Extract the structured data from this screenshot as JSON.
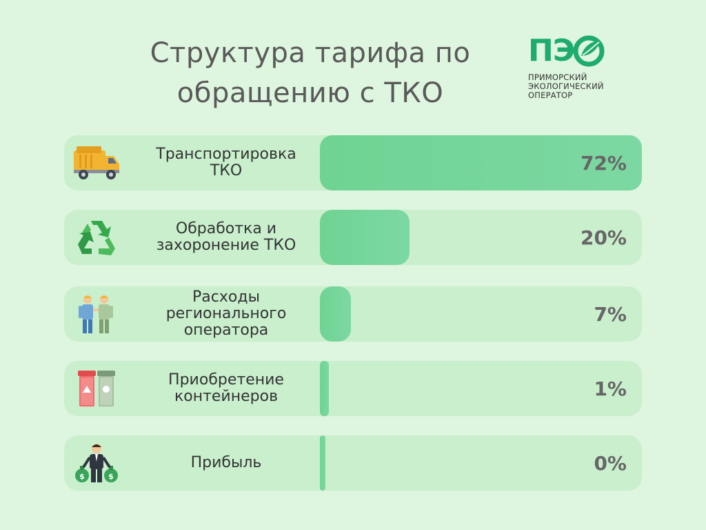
{
  "header": {
    "title_line1": "Структура тарифа по",
    "title_line2": "обращению с ТКО"
  },
  "logo": {
    "letters": "ПЭ",
    "line1": "ПРИМОРСКИЙ",
    "line2": "ЭКОЛОГИЧЕСКИЙ",
    "line3": "ОПЕРАТОР",
    "accent_color": "#1eab6e"
  },
  "chart_data": {
    "type": "bar",
    "orientation": "horizontal",
    "categories": [
      "Транспортировка\nТКО",
      "Обработка и\nзахоронение ТКО",
      "Расходы\nрегионального\nоператора",
      "Приобретение\nконтейнеров",
      "Прибыль"
    ],
    "values": [
      72,
      20,
      7,
      1,
      0
    ],
    "value_labels": [
      "72%",
      "20%",
      "7%",
      "1%",
      "0%"
    ],
    "icons": [
      "garbage-truck-icon",
      "recycle-icon",
      "workers-icon",
      "containers-icon",
      "businessman-icon"
    ],
    "xlim": [
      0,
      72
    ],
    "bar_color": "#74d59a",
    "track_color": "#c9efcd"
  }
}
